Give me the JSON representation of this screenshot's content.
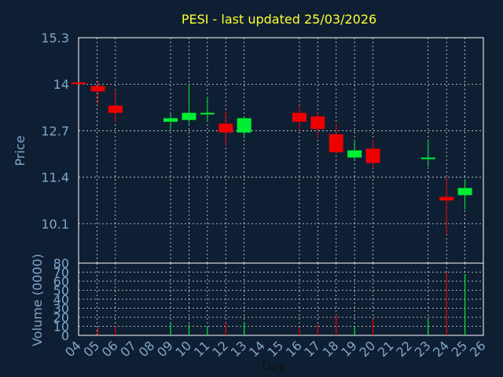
{
  "chart_data": {
    "type": "candlestick",
    "title": "PESI - last updated 25/03/2026",
    "xlabel": "Day",
    "price_panel": {
      "ylabel": "Price",
      "ylim": [
        9.0,
        15.3
      ],
      "yticks": [
        "15.3",
        "14",
        "12.7",
        "11.4",
        "10.1"
      ],
      "ytick_values": [
        15.3,
        14.0,
        12.7,
        11.4,
        10.1
      ]
    },
    "volume_panel": {
      "ylabel": "Volume (0000)",
      "ylim": [
        0,
        80
      ],
      "yticks": [
        "80",
        "70",
        "60",
        "50",
        "40",
        "30",
        "20",
        "10",
        "0"
      ],
      "ytick_values": [
        80,
        70,
        60,
        50,
        40,
        30,
        20,
        10,
        0
      ]
    },
    "x_ticks": [
      "04",
      "05",
      "06",
      "07",
      "08",
      "09",
      "10",
      "11",
      "12",
      "13",
      "14",
      "15",
      "16",
      "17",
      "18",
      "19",
      "20",
      "21",
      "22",
      "23",
      "24",
      "25",
      "26"
    ],
    "x_range": [
      4,
      26
    ],
    "candles": [
      {
        "day": 4.0,
        "open": 14.05,
        "close": 14.0,
        "high": 14.05,
        "low": 14.0,
        "volume": 0
      },
      {
        "day": 5.05,
        "open": 13.95,
        "close": 13.8,
        "high": 14.1,
        "low": 13.45,
        "volume": 8
      },
      {
        "day": 6.0,
        "open": 13.4,
        "close": 13.2,
        "high": 13.85,
        "low": 12.95,
        "volume": 10
      },
      {
        "day": 9.0,
        "open": 12.95,
        "close": 13.05,
        "high": 13.2,
        "low": 12.7,
        "volume": 13
      },
      {
        "day": 10.0,
        "open": 13.0,
        "close": 13.2,
        "high": 14.0,
        "low": 12.9,
        "volume": 12
      },
      {
        "day": 11.0,
        "open": 13.2,
        "close": 13.2,
        "high": 13.65,
        "low": 12.95,
        "volume": 10
      },
      {
        "day": 12.0,
        "open": 12.9,
        "close": 12.65,
        "high": 13.25,
        "low": 12.3,
        "volume": 14
      },
      {
        "day": 13.0,
        "open": 12.65,
        "close": 13.05,
        "high": 13.1,
        "low": 12.5,
        "volume": 15
      },
      {
        "day": 16.0,
        "open": 13.2,
        "close": 12.95,
        "high": 13.4,
        "low": 12.7,
        "volume": 9
      },
      {
        "day": 17.0,
        "open": 13.1,
        "close": 12.75,
        "high": 13.2,
        "low": 12.5,
        "volume": 12
      },
      {
        "day": 18.0,
        "open": 12.6,
        "close": 12.1,
        "high": 12.9,
        "low": 12.05,
        "volume": 23
      },
      {
        "day": 19.0,
        "open": 11.95,
        "close": 12.15,
        "high": 12.4,
        "low": 11.9,
        "volume": 10
      },
      {
        "day": 20.0,
        "open": 12.2,
        "close": 11.8,
        "high": 12.45,
        "low": 11.65,
        "volume": 18
      },
      {
        "day": 23.0,
        "open": 11.95,
        "close": 11.95,
        "high": 12.45,
        "low": 11.7,
        "volume": 17
      },
      {
        "day": 24.0,
        "open": 10.85,
        "close": 10.75,
        "high": 11.4,
        "low": 9.8,
        "volume": 70
      },
      {
        "day": 25.0,
        "open": 10.9,
        "close": 11.1,
        "high": 11.35,
        "low": 10.5,
        "volume": 68
      }
    ],
    "up_color": "#00ee33",
    "down_color": "#ee0000",
    "title_color": "#ffff33",
    "axis_text_color": "#7fa6c8",
    "grid": true
  }
}
